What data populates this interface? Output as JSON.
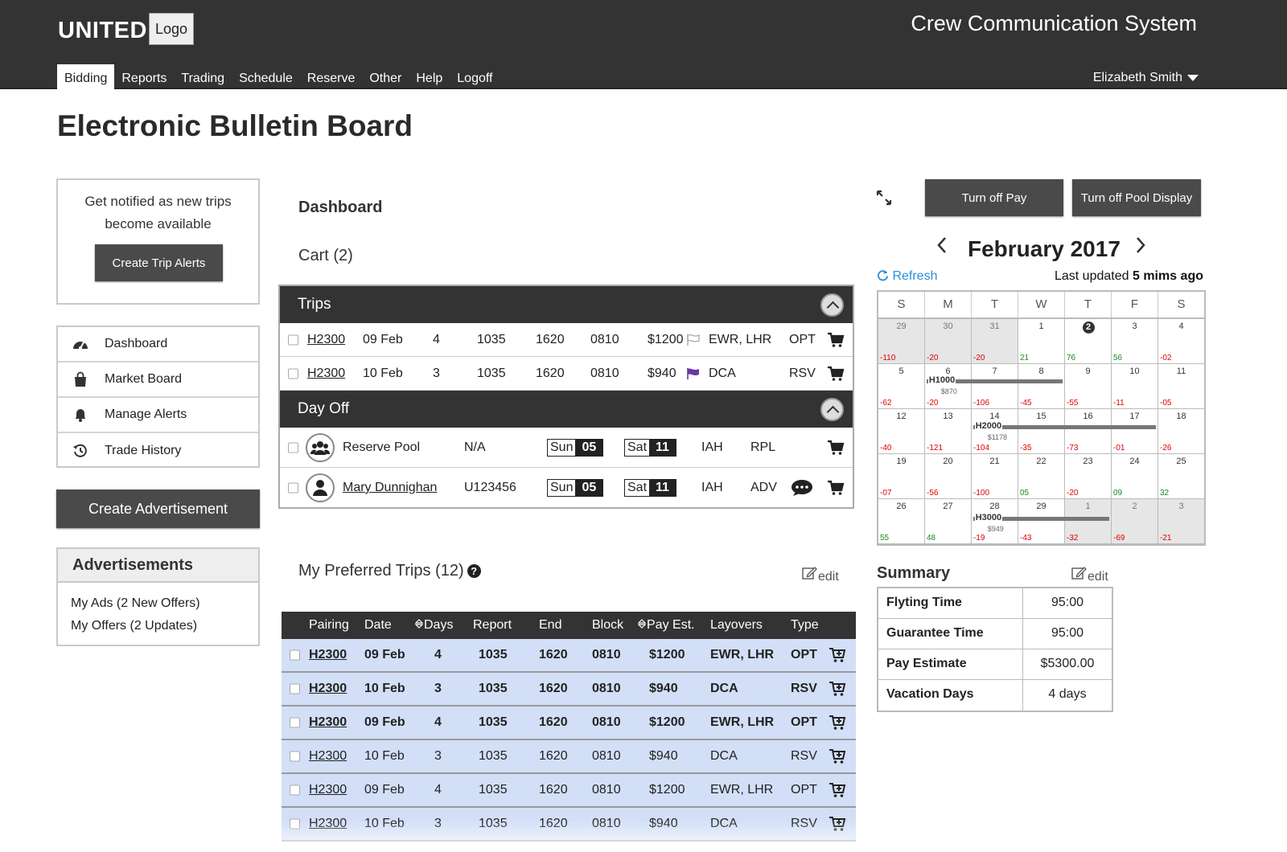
{
  "header": {
    "brand": "UNITED",
    "logo_label": "Logo",
    "system_title": "Crew Communication System",
    "nav": [
      "Bidding",
      "Reports",
      "Trading",
      "Schedule",
      "Reserve",
      "Other",
      "Help",
      "Logoff"
    ],
    "active_nav": "Bidding",
    "user_name": "Elizabeth Smith"
  },
  "page_title": "Electronic Bulletin Board",
  "sidebar": {
    "notify_text_1": "Get notified as new trips",
    "notify_text_2": "become available",
    "create_alerts_label": "Create Trip Alerts",
    "menu": [
      {
        "label": "Dashboard",
        "icon": "dashboard-icon"
      },
      {
        "label": "Market Board",
        "icon": "shopping-bag-icon"
      },
      {
        "label": "Manage Alerts",
        "icon": "bell-icon"
      },
      {
        "label": "Trade History",
        "icon": "history-icon"
      }
    ],
    "create_ad_label": "Create Advertisement",
    "ads_title": "Advertisements",
    "ads_lines": [
      "My Ads (2 New Offers)",
      "My Offers (2 Updates)"
    ]
  },
  "dashboard": {
    "title": "Dashboard",
    "cart_title": "Cart (2)",
    "trips_header": "Trips",
    "dayoff_header": "Day Off",
    "trips": [
      {
        "pairing": "H2300",
        "date": "09 Feb",
        "days": "4",
        "report": "1035",
        "end": "1620",
        "block": "0810",
        "pay": "$1200",
        "flag": "outline",
        "layovers": "EWR, LHR",
        "type": "OPT"
      },
      {
        "pairing": "H2300",
        "date": "10 Feb",
        "days": "3",
        "report": "1035",
        "end": "1620",
        "block": "0810",
        "pay": "$940",
        "flag": "purple",
        "layovers": "DCA",
        "type": "RSV"
      }
    ],
    "dayoff": [
      {
        "name": "Reserve Pool",
        "id": "N/A",
        "from_day": "Sun",
        "from_num": "05",
        "to_day": "Sat",
        "to_num": "11",
        "base": "IAH",
        "code": "RPL",
        "avatar": "group-icon",
        "link": false,
        "chat": false
      },
      {
        "name": "Mary Dunnighan",
        "id": "U123456",
        "from_day": "Sun",
        "from_num": "05",
        "to_day": "Sat",
        "to_num": "11",
        "base": "IAH",
        "code": "ADV",
        "avatar": "person-icon",
        "link": true,
        "chat": true
      }
    ],
    "preferred_title": "My Preferred Trips (12)",
    "edit_label": "edit",
    "pref_columns": [
      "Pairing",
      "Date",
      "Days",
      "Report",
      "End",
      "Block",
      "Pay Est.",
      "Layovers",
      "Type"
    ],
    "preferred": [
      {
        "pairing": "H2300",
        "date": "09 Feb",
        "days": "4",
        "report": "1035",
        "end": "1620",
        "block": "0810",
        "pay": "$1200",
        "layovers": "EWR, LHR",
        "type": "OPT",
        "bold": true
      },
      {
        "pairing": "H2300",
        "date": "10 Feb",
        "days": "3",
        "report": "1035",
        "end": "1620",
        "block": "0810",
        "pay": "$940",
        "layovers": "DCA",
        "type": "RSV",
        "bold": true
      },
      {
        "pairing": "H2300",
        "date": "09 Feb",
        "days": "4",
        "report": "1035",
        "end": "1620",
        "block": "0810",
        "pay": "$1200",
        "layovers": "EWR, LHR",
        "type": "OPT",
        "bold": true
      },
      {
        "pairing": "H2300",
        "date": "10 Feb",
        "days": "3",
        "report": "1035",
        "end": "1620",
        "block": "0810",
        "pay": "$940",
        "layovers": "DCA",
        "type": "RSV",
        "bold": false
      },
      {
        "pairing": "H2300",
        "date": "09 Feb",
        "days": "4",
        "report": "1035",
        "end": "1620",
        "block": "0810",
        "pay": "$1200",
        "layovers": "EWR, LHR",
        "type": "OPT",
        "bold": false
      },
      {
        "pairing": "H2300",
        "date": "10 Feb",
        "days": "3",
        "report": "1035",
        "end": "1620",
        "block": "0810",
        "pay": "$940",
        "layovers": "DCA",
        "type": "RSV",
        "bold": false
      }
    ]
  },
  "calendar": {
    "turn_off_pay": "Turn off Pay",
    "turn_off_pool": "Turn off Pool Display",
    "month": "February 2017",
    "refresh_label": "Refresh",
    "last_updated_prefix": "Last updated",
    "last_updated_value": "5 mims ago",
    "weekdays": [
      "S",
      "M",
      "T",
      "W",
      "T",
      "F",
      "S"
    ],
    "weeks": [
      [
        {
          "n": "29",
          "v": "-110",
          "g": true
        },
        {
          "n": "30",
          "v": "-20",
          "g": true
        },
        {
          "n": "31",
          "v": "-20",
          "g": true
        },
        {
          "n": "1",
          "v": "21"
        },
        {
          "n": "2",
          "v": "76",
          "circle": true
        },
        {
          "n": "3",
          "v": "56"
        },
        {
          "n": "4",
          "v": "-02"
        }
      ],
      [
        {
          "n": "5",
          "v": "-62"
        },
        {
          "n": "6",
          "v": "-20"
        },
        {
          "n": "7",
          "v": "-106"
        },
        {
          "n": "8",
          "v": "-45"
        },
        {
          "n": "9",
          "v": "-55"
        },
        {
          "n": "10",
          "v": "-11"
        },
        {
          "n": "11",
          "v": "-05"
        }
      ],
      [
        {
          "n": "12",
          "v": "-40"
        },
        {
          "n": "13",
          "v": "-121"
        },
        {
          "n": "14",
          "v": "-104"
        },
        {
          "n": "15",
          "v": "-35"
        },
        {
          "n": "16",
          "v": "-73"
        },
        {
          "n": "17",
          "v": "-01"
        },
        {
          "n": "18",
          "v": "-26"
        }
      ],
      [
        {
          "n": "19",
          "v": "-07"
        },
        {
          "n": "20",
          "v": "-56"
        },
        {
          "n": "21",
          "v": "-100"
        },
        {
          "n": "22",
          "v": "05"
        },
        {
          "n": "23",
          "v": "-20"
        },
        {
          "n": "24",
          "v": "09"
        },
        {
          "n": "25",
          "v": "32"
        }
      ],
      [
        {
          "n": "26",
          "v": "55"
        },
        {
          "n": "27",
          "v": "48"
        },
        {
          "n": "28",
          "v": "-19"
        },
        {
          "n": "29",
          "v": "-43"
        },
        {
          "n": "1",
          "v": "-32",
          "g": true
        },
        {
          "n": "2",
          "v": "-69",
          "g": true
        },
        {
          "n": "3",
          "v": "-21",
          "g": true
        }
      ]
    ],
    "trips": [
      {
        "label": "H1000",
        "pay": "$870"
      },
      {
        "label": "H2000",
        "pay": "$1178"
      },
      {
        "label": "H3000",
        "pay": "$949"
      }
    ]
  },
  "summary": {
    "title": "Summary",
    "edit_label": "edit",
    "rows": [
      {
        "k": "Flyting Time",
        "v": "95:00"
      },
      {
        "k": "Guarantee Time",
        "v": "95:00"
      },
      {
        "k": "Pay Estimate",
        "v": "$5300.00"
      },
      {
        "k": "Vacation Days",
        "v": "4 days"
      }
    ]
  },
  "colors": {
    "header": "#333333",
    "row_blue": "#d3dff7",
    "negative": "#dd0000",
    "positive": "#1a8a1a",
    "link": "#2b8fd9"
  }
}
